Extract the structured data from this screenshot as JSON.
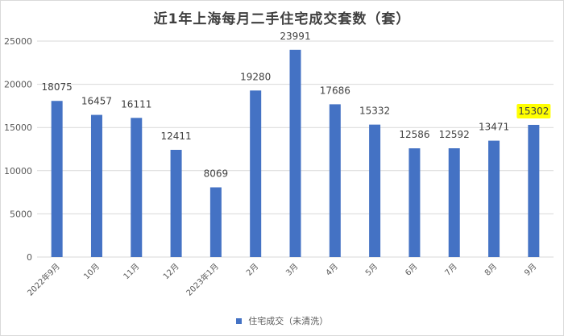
{
  "chart_data": {
    "type": "bar",
    "title": "近1年上海每月二手住宅成交套数（套）",
    "categories": [
      "2022年9月",
      "10月",
      "11月",
      "12月",
      "2023年1月",
      "2月",
      "3月",
      "4月",
      "5月",
      "6月",
      "7月",
      "8月",
      "9月"
    ],
    "series": [
      {
        "name": "住宅成交（未清洗）",
        "values": [
          18075,
          16457,
          16111,
          12411,
          8069,
          19280,
          23991,
          17686,
          15332,
          12586,
          12592,
          13471,
          15302
        ]
      }
    ],
    "ylim": [
      0,
      25000
    ],
    "yticks": [
      0,
      5000,
      10000,
      15000,
      20000,
      25000
    ],
    "grid": true,
    "legend_position": "bottom",
    "highlighted_label_index": 12,
    "colors": {
      "bar": "#4472c4",
      "highlight_label_bg": "#ffff00",
      "grid": "#d9d9d9",
      "text": "#595959"
    }
  }
}
